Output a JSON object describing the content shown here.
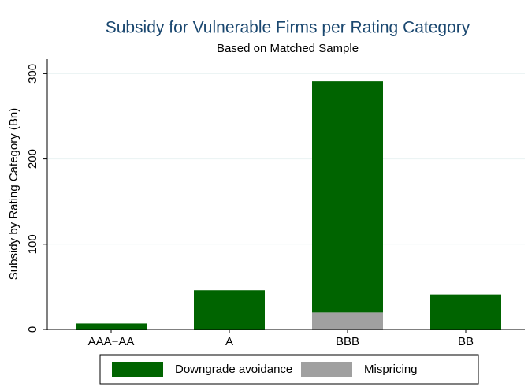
{
  "chart_data": {
    "type": "bar",
    "stacked": true,
    "title": "Subsidy for Vulnerable Firms per Rating Category",
    "subtitle": "Based on Matched Sample",
    "y_label": "Subsidy by Rating Category (Bn)",
    "categories": [
      "AAA−AA",
      "A",
      "BBB",
      "BB"
    ],
    "series": [
      {
        "name": "Downgrade avoidance",
        "color": "#006400",
        "values": [
          7,
          46,
          271,
          41
        ]
      },
      {
        "name": "Mispricing",
        "color": "#a0a0a0",
        "values": [
          0,
          0,
          20,
          0
        ]
      }
    ],
    "ylim": [
      0,
      317
    ],
    "yticks": [
      0,
      100,
      200,
      300
    ],
    "grid": true,
    "legend": "bottom"
  }
}
